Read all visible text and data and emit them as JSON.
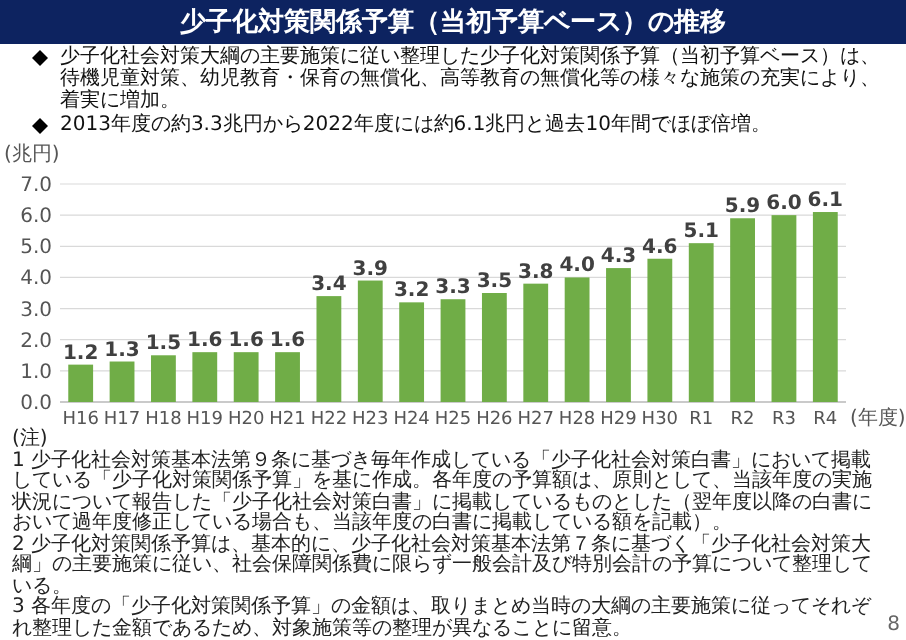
{
  "chart_data": {
    "type": "bar",
    "title": "少子化対策関係予算（当初予算ベース）の推移",
    "subtitle": "少子化社会対策大綱の主要施策に従い整理した少子化対策関係予算（当初予算ベース）は、待機児童対策、幼児教育・保育の無償化、高等教育の無償化等の様々な施策の充実により、着実に増加。",
    "annotations": [
      "2013年度の約3.3兆円から2022年度には約6.1兆円と過去10年間でほぼ倍増。",
      "(注)",
      "1 少子化社会対策基本法第９条に基づき毎年作成している「少子化社会対策白書」において掲載している「少子化対策関係予算」を基に作成。各年度の予算額は、原則として、当該年度の実施状況について報告した「少子化社会対策白書」に掲載しているものとした（翌年度以降の白書において過年度修正している場合も、当該年度の白書に掲載している額を記載）。",
      "2 少子化対策関係予算は、基本的に、少子化社会対策基本法第７条に基づく「少子化社会対策大綱」の主要施策に従い、社会保障関係費に限らず一般会計及び特別会計の予算について整理している。",
      "3 各年度の「少子化対策関係予算」の金額は、取りまとめ当時の大綱の主要施策に従ってそれぞれ整理した金額であるため、対象施策等の整理が異なることに留意。",
      "8"
    ],
    "ylabel": "(兆円)",
    "xlabel": "(年度)",
    "categories": [
      "H16",
      "H17",
      "H18",
      "H19",
      "H20",
      "H21",
      "H22",
      "H23",
      "H24",
      "H25",
      "H26",
      "H27",
      "H28",
      "H29",
      "H30",
      "R1",
      "R2",
      "R3",
      "R4"
    ],
    "values": [
      1.2,
      1.3,
      1.5,
      1.6,
      1.6,
      1.6,
      3.4,
      3.9,
      3.2,
      3.3,
      3.5,
      3.8,
      4.0,
      4.3,
      4.6,
      5.1,
      5.9,
      6.0,
      6.1
    ],
    "value_labels": [
      "1.2",
      "1.3",
      "1.5",
      "1.6",
      "1.6",
      "1.6",
      "3.4",
      "3.9",
      "3.2",
      "3.3",
      "3.5",
      "3.8",
      "4.0",
      "4.3",
      "4.6",
      "5.1",
      "5.9",
      "6.0",
      "6.1"
    ],
    "color": "#70ad47",
    "ylim": [
      0,
      7
    ],
    "yticks": [
      {
        "value": 0,
        "label": "0.0"
      },
      {
        "value": 1,
        "label": "1.0"
      },
      {
        "value": 2,
        "label": "2.0"
      },
      {
        "value": 3,
        "label": "3.0"
      },
      {
        "value": 4,
        "label": "4.0"
      },
      {
        "value": 5,
        "label": "5.0"
      },
      {
        "value": 6,
        "label": "6.0"
      },
      {
        "value": 7,
        "label": "7.0"
      }
    ],
    "grid": "y"
  }
}
